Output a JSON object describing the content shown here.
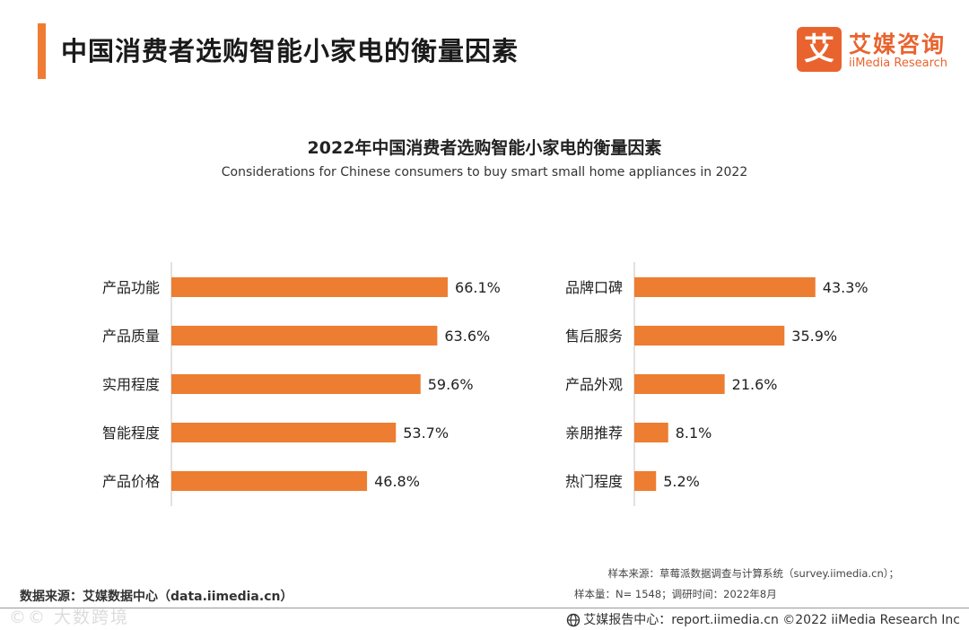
{
  "header": {
    "title": "中国消费者选购智能小家电的衡量因素",
    "logo_mark": "艾",
    "logo_cn": "艾媒咨询",
    "logo_en": "iiMedia Research"
  },
  "colors": {
    "accent": "#f07c34",
    "bar": "#ed7d31",
    "axis": "#d9d9d9"
  },
  "chart_data": [
    {
      "type": "bar",
      "orientation": "horizontal",
      "title": "2022年中国消费者选购智能小家电的衡量因素",
      "subtitle": "Considerations for Chinese consumers to buy smart small home appliances in 2022",
      "categories": [
        "产品功能",
        "产品质量",
        "实用程度",
        "智能程度",
        "产品价格"
      ],
      "values": [
        66.1,
        63.6,
        59.6,
        53.7,
        46.8
      ],
      "value_labels": [
        "66.1%",
        "63.6%",
        "59.6%",
        "53.7%",
        "46.8%"
      ],
      "xlim": [
        0,
        100
      ]
    },
    {
      "type": "bar",
      "orientation": "horizontal",
      "categories": [
        "品牌口碑",
        "售后服务",
        "产品外观",
        "亲朋推荐",
        "热门程度"
      ],
      "values": [
        43.3,
        35.9,
        21.6,
        8.1,
        5.2
      ],
      "value_labels": [
        "43.3%",
        "35.9%",
        "21.6%",
        "8.1%",
        "5.2%"
      ],
      "xlim": [
        0,
        100
      ]
    }
  ],
  "footer": {
    "source": "数据来源：艾媒数据中心（data.iimedia.cn）",
    "sample_source": "样本来源：草莓派数据调查与计算系统（survey.iimedia.cn）；",
    "sample_size": "样本量：N= 1548；调研时间：2022年8月",
    "report_center": "艾媒报告中心：report.iimedia.cn   ©2022  iiMedia Research  Inc",
    "watermark": "©© 大数跨境"
  }
}
